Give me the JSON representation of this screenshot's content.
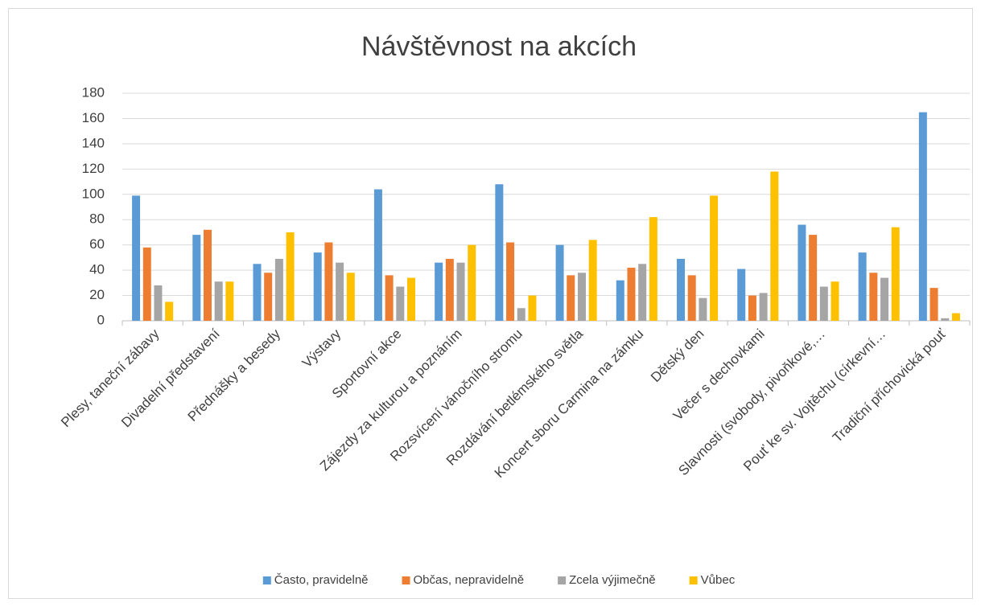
{
  "chart_data": {
    "type": "bar",
    "title": "Návštěvnost na akcích",
    "categories": [
      "Plesy, taneční zábavy",
      "Divadelní představení",
      "Přednášky a besedy",
      "Výstavy",
      "Sportovní akce",
      "Zájezdy za kulturou a poznáním",
      "Rozsvícení vánočního stromu",
      "Rozdávání betlémského světla",
      "Koncert sboru Carmina na zámku",
      "Dětský den",
      "Večer s dechovkami",
      "Slavnosti (svobody, pivoňkové,…",
      "Pouť ke sv. Vojtěchu (církevní…",
      "Tradiční příchovická pouť"
    ],
    "series": [
      {
        "name": "Často, pravidelně",
        "color": "#5b9bd5",
        "values": [
          99,
          68,
          45,
          54,
          104,
          46,
          108,
          60,
          32,
          49,
          41,
          76,
          54,
          165
        ]
      },
      {
        "name": "Občas, nepravidelně",
        "color": "#ed7d31",
        "values": [
          58,
          72,
          38,
          62,
          36,
          49,
          62,
          36,
          42,
          36,
          20,
          68,
          38,
          26
        ]
      },
      {
        "name": "Zcela výjimečně",
        "color": "#a5a5a5",
        "values": [
          28,
          31,
          49,
          46,
          27,
          46,
          10,
          38,
          45,
          18,
          22,
          27,
          34,
          2
        ]
      },
      {
        "name": "Vůbec",
        "color": "#ffc000",
        "values": [
          15,
          31,
          70,
          38,
          34,
          60,
          20,
          64,
          82,
          99,
          118,
          31,
          74,
          6
        ]
      }
    ],
    "ylim": [
      0,
      180
    ],
    "yticks": [
      0,
      20,
      40,
      60,
      80,
      100,
      120,
      140,
      160,
      180
    ],
    "grid": true,
    "legend": "bottom"
  }
}
